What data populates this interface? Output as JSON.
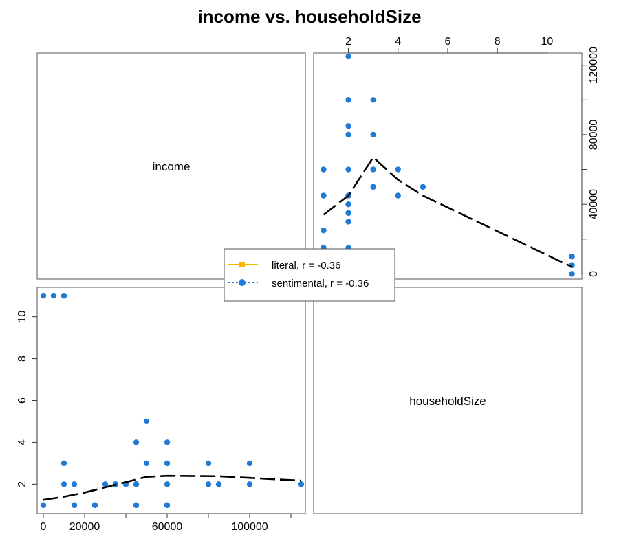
{
  "chart_data": {
    "type": "scatter",
    "title": "income vs. householdSize",
    "variables": [
      "income",
      "householdSize"
    ],
    "grid": false,
    "legend_position": "center",
    "legend": [
      {
        "label": "literal, r = -0.36",
        "color": "#f5b800",
        "marker": "square",
        "line": "solid"
      },
      {
        "label": "sentimental, r = -0.36",
        "color": "#1f7bd4",
        "marker": "circle",
        "line": "dotted"
      }
    ],
    "colors": {
      "points": "#1f7bd4",
      "smoother": "#000000",
      "literal": "#f5b800"
    },
    "axes": {
      "income": {
        "range": [
          -3000,
          127000
        ],
        "ticks": [
          0,
          20000,
          40000,
          60000,
          80000,
          100000,
          120000
        ],
        "tick_labels": [
          "0",
          "20000",
          "",
          "60000",
          "",
          "100000",
          ""
        ]
      },
      "income_right": {
        "ticks": [
          0,
          20000,
          40000,
          60000,
          80000,
          100000,
          120000
        ],
        "tick_labels": [
          "0",
          "",
          "40000",
          "",
          "80000",
          "",
          "120000"
        ]
      },
      "householdSize": {
        "range": [
          0.6,
          11.4
        ],
        "ticks": [
          2,
          4,
          6,
          8,
          10
        ],
        "tick_labels": [
          "2",
          "4",
          "6",
          "8",
          "10"
        ]
      }
    },
    "points": [
      {
        "income": 0,
        "householdSize": 1
      },
      {
        "income": 0,
        "householdSize": 11
      },
      {
        "income": 5000,
        "householdSize": 11
      },
      {
        "income": 10000,
        "householdSize": 11
      },
      {
        "income": 10000,
        "householdSize": 3
      },
      {
        "income": 10000,
        "householdSize": 2
      },
      {
        "income": 15000,
        "householdSize": 1
      },
      {
        "income": 15000,
        "householdSize": 2
      },
      {
        "income": 25000,
        "householdSize": 1
      },
      {
        "income": 30000,
        "householdSize": 2
      },
      {
        "income": 35000,
        "householdSize": 2
      },
      {
        "income": 40000,
        "householdSize": 2
      },
      {
        "income": 45000,
        "householdSize": 4
      },
      {
        "income": 45000,
        "householdSize": 2
      },
      {
        "income": 45000,
        "householdSize": 1
      },
      {
        "income": 50000,
        "householdSize": 5
      },
      {
        "income": 50000,
        "householdSize": 3
      },
      {
        "income": 60000,
        "householdSize": 4
      },
      {
        "income": 60000,
        "householdSize": 3
      },
      {
        "income": 60000,
        "householdSize": 2
      },
      {
        "income": 60000,
        "householdSize": 1
      },
      {
        "income": 80000,
        "householdSize": 3
      },
      {
        "income": 80000,
        "householdSize": 2
      },
      {
        "income": 85000,
        "householdSize": 2
      },
      {
        "income": 100000,
        "householdSize": 3
      },
      {
        "income": 100000,
        "householdSize": 2
      },
      {
        "income": 125000,
        "householdSize": 2
      },
      {
        "income": 15000,
        "householdSize": 1
      },
      {
        "income": 25000,
        "householdSize": 1
      },
      {
        "income": 35000,
        "householdSize": 2
      },
      {
        "income": 45000,
        "householdSize": 1
      },
      {
        "income": 45000,
        "householdSize": 2
      },
      {
        "income": 60000,
        "householdSize": 1
      },
      {
        "income": 0,
        "householdSize": 11
      },
      {
        "income": 5000,
        "householdSize": 11
      },
      {
        "income": 10000,
        "householdSize": 11
      }
    ],
    "smooth_income_vs_householdSize": [
      {
        "householdSize": 1,
        "income": 34000
      },
      {
        "householdSize": 2,
        "income": 45000
      },
      {
        "householdSize": 3,
        "income": 67000
      },
      {
        "householdSize": 4,
        "income": 54000
      },
      {
        "householdSize": 5,
        "income": 45000
      },
      {
        "householdSize": 11,
        "income": 4000
      }
    ],
    "smooth_householdSize_vs_income": [
      {
        "income": 0,
        "householdSize": 1.25
      },
      {
        "income": 10000,
        "householdSize": 1.4
      },
      {
        "income": 20000,
        "householdSize": 1.6
      },
      {
        "income": 30000,
        "householdSize": 1.85
      },
      {
        "income": 40000,
        "householdSize": 2.1
      },
      {
        "income": 50000,
        "householdSize": 2.35
      },
      {
        "income": 60000,
        "householdSize": 2.4
      },
      {
        "income": 70000,
        "householdSize": 2.39
      },
      {
        "income": 85000,
        "householdSize": 2.38
      },
      {
        "income": 100000,
        "householdSize": 2.3
      },
      {
        "income": 125000,
        "householdSize": 2.17
      }
    ]
  }
}
